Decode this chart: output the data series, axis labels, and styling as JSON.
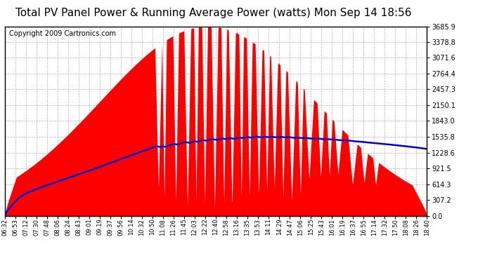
{
  "title": "Total PV Panel Power & Running Average Power (watts) Mon Sep 14 18:56",
  "copyright": "Copyright 2009 Cartronics.com",
  "yticks": [
    0.0,
    307.2,
    614.3,
    921.5,
    1228.6,
    1535.8,
    1843.0,
    2150.1,
    2457.3,
    2764.4,
    3071.6,
    3378.8,
    3685.9
  ],
  "ymax": 3685.9,
  "ymin": 0.0,
  "fill_color": "#FF0000",
  "line_color": "#0000CC",
  "background_color": "#FFFFFF",
  "grid_color": "#AAAAAA",
  "title_fontsize": 11,
  "copyright_fontsize": 7,
  "xtick_labels": [
    "06:32",
    "06:53",
    "07:12",
    "07:30",
    "07:48",
    "08:06",
    "08:24",
    "08:43",
    "09:01",
    "09:19",
    "09:37",
    "09:56",
    "10:14",
    "10:32",
    "10:50",
    "11:08",
    "11:26",
    "11:45",
    "12:03",
    "12:22",
    "12:40",
    "12:58",
    "13:16",
    "13:35",
    "13:53",
    "14:11",
    "14:29",
    "14:47",
    "15:06",
    "15:25",
    "15:43",
    "16:01",
    "16:19",
    "16:37",
    "16:55",
    "17:14",
    "17:32",
    "17:50",
    "18:08",
    "18:26",
    "18:40"
  ]
}
